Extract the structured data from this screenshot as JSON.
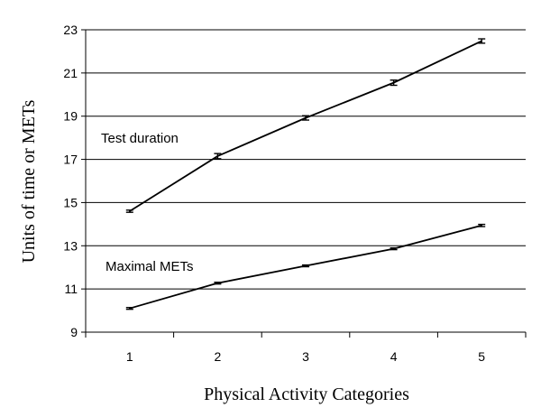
{
  "chart_data": {
    "type": "line",
    "title": "",
    "xlabel": "Physical Activity Categories",
    "ylabel": "Units of time or METs",
    "categories": [
      "1",
      "2",
      "3",
      "4",
      "5"
    ],
    "ylim": [
      9,
      23
    ],
    "yticks": [
      "9",
      "11",
      "13",
      "15",
      "17",
      "19",
      "21",
      "23"
    ],
    "grid": "horizontal",
    "legend": "none",
    "series": [
      {
        "name": "Test duration",
        "values": [
          14.6,
          17.15,
          18.92,
          20.55,
          22.48
        ],
        "error": [
          0.05,
          0.12,
          0.1,
          0.12,
          0.1
        ],
        "color": "#000000"
      },
      {
        "name": "Maximal METs",
        "values": [
          10.1,
          11.27,
          12.07,
          12.86,
          13.94
        ],
        "error": [
          0.03,
          0.04,
          0.04,
          0.04,
          0.05
        ],
        "color": "#000000"
      }
    ]
  }
}
